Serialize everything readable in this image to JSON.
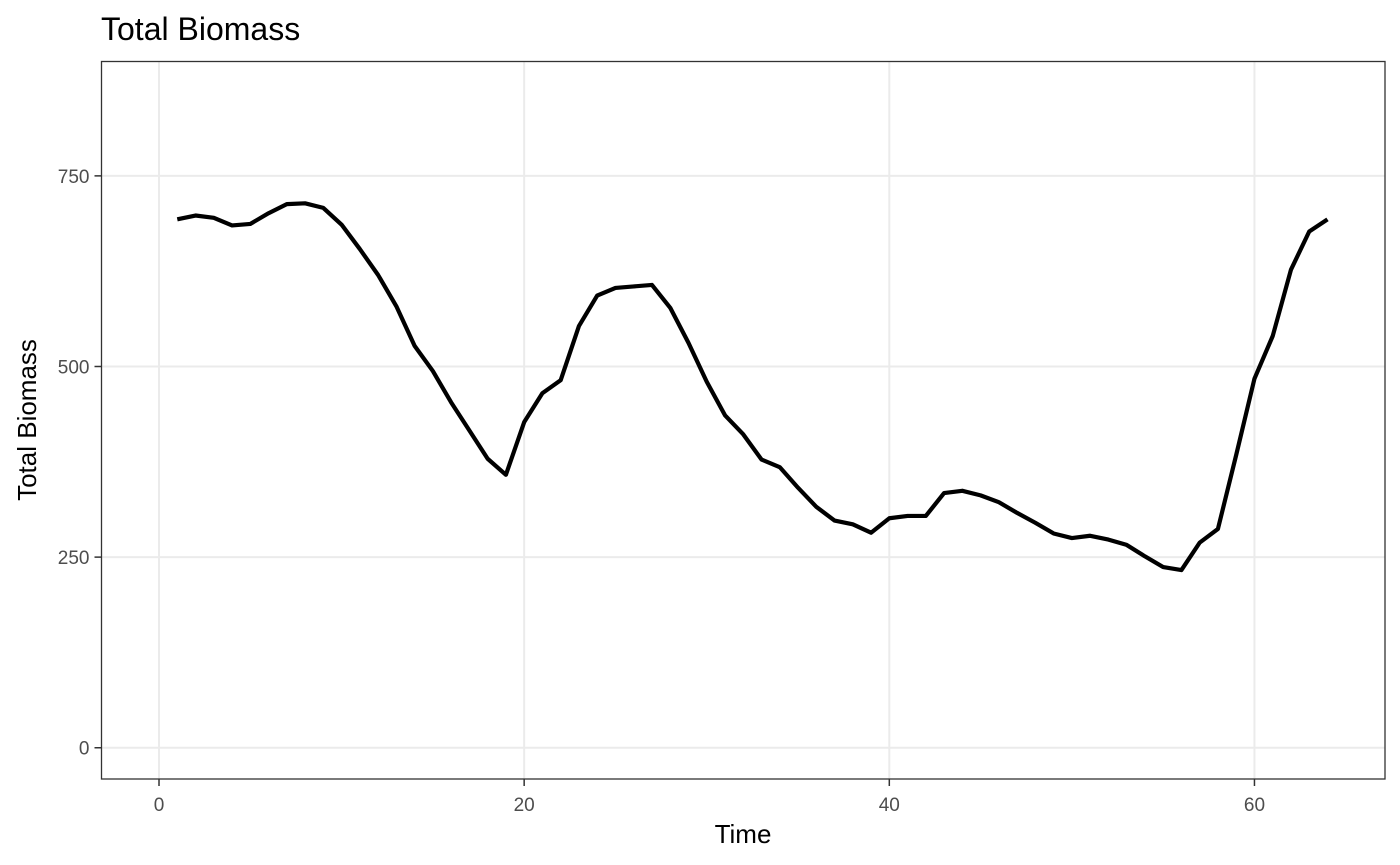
{
  "chart_data": {
    "type": "line",
    "title": "Total Biomass",
    "xlabel": "Time",
    "ylabel": "Total Biomass",
    "xlim": [
      -3.15,
      67.15
    ],
    "ylim": [
      -41,
      900
    ],
    "x_ticks": [
      0,
      20,
      40,
      60
    ],
    "y_ticks": [
      0,
      250,
      500,
      750
    ],
    "grid": true,
    "legend": "none",
    "colors": {
      "line": "#000000",
      "grid": "#ebebeb",
      "border": "#333333",
      "tick_label": "#4d4d4d"
    },
    "series": [
      {
        "x": [
          1,
          2,
          3,
          4,
          5,
          6,
          7,
          8,
          9,
          10,
          11,
          12,
          13,
          14,
          15,
          16,
          17,
          18,
          19,
          20,
          21,
          22,
          23,
          24,
          25,
          26,
          27,
          28,
          29,
          30,
          31,
          32,
          33,
          34,
          35,
          36,
          37,
          38,
          39,
          40,
          41,
          42,
          43,
          44,
          45,
          46,
          47,
          48,
          49,
          50,
          51,
          52,
          53,
          54,
          55,
          56,
          57,
          58,
          59,
          60,
          61,
          62,
          63,
          64
        ],
        "values": [
          693,
          698,
          695,
          685,
          687,
          701,
          713,
          714,
          708,
          686,
          654,
          620,
          579,
          527,
          494,
          453,
          416,
          379,
          358,
          427,
          465,
          482,
          553,
          593,
          603,
          605,
          607,
          577,
          531,
          480,
          436,
          411,
          378,
          368,
          341,
          316,
          298,
          293,
          282,
          301,
          304,
          304,
          334,
          337,
          331,
          322,
          308,
          295,
          281,
          275,
          278,
          273,
          266,
          251,
          237,
          233,
          269,
          287,
          384,
          484,
          540,
          627,
          677,
          693
        ]
      }
    ]
  }
}
